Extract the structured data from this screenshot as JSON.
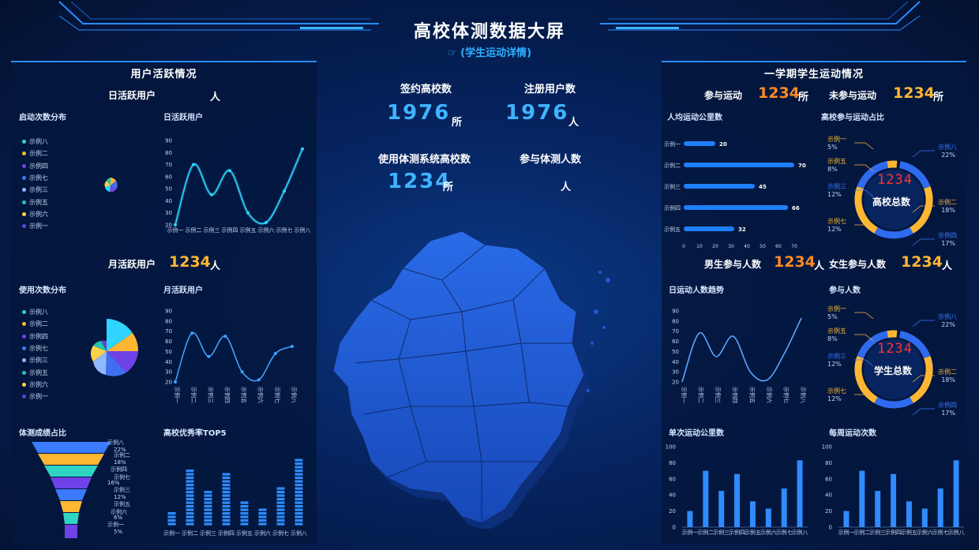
{
  "header": {
    "title": "高校体测数据大屏",
    "subtitle": "(学生运动详情)"
  },
  "colors": {
    "accent": "#2a8cff",
    "orange": "#ffb733",
    "blue": "#3fb4ff"
  },
  "left": {
    "title": "用户活跃情况",
    "daily": {
      "label": "日活跃用户",
      "unit": "人"
    },
    "launch_dist": {
      "title": "启动次数分布",
      "legend": [
        "示例八",
        "示例二",
        "示例四",
        "示例七",
        "示例三",
        "示例五",
        "示例六",
        "示例一"
      ]
    },
    "daily_chart": {
      "title": "日活跃用户"
    },
    "monthly": {
      "label": "月活跃用户",
      "value": "1234",
      "unit": "人"
    },
    "usage_dist": {
      "title": "使用次数分布",
      "legend": [
        "示例八",
        "示例二",
        "示例四",
        "示例七",
        "示例三",
        "示例五",
        "示例六",
        "示例一"
      ]
    },
    "monthly_chart": {
      "title": "月活跃用户"
    },
    "score": {
      "title": "体测成绩占比",
      "labels": [
        "示例八",
        "22%",
        "示例二",
        "18%",
        "示例四",
        "示例七",
        "16%",
        "示例三",
        "12%",
        "示例五",
        "示例六",
        "6%",
        "示例一",
        "5%"
      ]
    },
    "top5": {
      "title": "高校优秀率TOP5"
    }
  },
  "center": {
    "signed": {
      "label": "签约高校数",
      "value": "1976",
      "unit": "所"
    },
    "registered": {
      "label": "注册用户数",
      "value": "1976",
      "unit": "人"
    },
    "using": {
      "label": "使用体测系统高校数",
      "value": "1234",
      "unit": "所"
    },
    "participants": {
      "label": "参与体测人数",
      "unit": "人"
    }
  },
  "right": {
    "title": "一学期学生运动情况",
    "part": {
      "label": "参与运动",
      "value": "1234",
      "unit": "所"
    },
    "nopart": {
      "label": "未参与运动",
      "value": "1234",
      "unit": "所"
    },
    "km": {
      "title": "人均运动公里数"
    },
    "ratio": {
      "title": "高校参与运动占比",
      "center_num": "1234",
      "center_label": "高校总数"
    },
    "male": {
      "label": "男生参与人数",
      "value": "1234",
      "unit": "人"
    },
    "female": {
      "label": "女生参与人数",
      "value": "1234",
      "unit": "人"
    },
    "trend": {
      "title": "日运动人数趋势"
    },
    "people": {
      "title": "参与人数",
      "center_num": "1234",
      "center_label": "学生总数"
    },
    "single_km": {
      "title": "单次运动公里数"
    },
    "weekly": {
      "title": "每周运动次数"
    }
  },
  "chart_data": [
    {
      "type": "line",
      "name_ref": "left.daily_chart",
      "categories": [
        "示例一",
        "示例二",
        "示例三",
        "示例四",
        "示例五",
        "示例六",
        "示例七",
        "示例八"
      ],
      "values": [
        20,
        70,
        45,
        65,
        30,
        22,
        48,
        83
      ],
      "ylim": [
        20,
        90
      ],
      "yticks": [
        20,
        30,
        40,
        50,
        60,
        70,
        80,
        90
      ]
    },
    {
      "type": "line",
      "name_ref": "left.monthly_chart",
      "categories": [
        "示例一",
        "示例二",
        "示例三",
        "示例四",
        "示例五",
        "示例六",
        "示例七",
        "示例八"
      ],
      "values": [
        20,
        68,
        45,
        65,
        30,
        22,
        48,
        55
      ],
      "ylim": [
        20,
        90
      ],
      "yticks": [
        20,
        30,
        40,
        50,
        60,
        70,
        80,
        90
      ]
    },
    {
      "type": "bar",
      "name_ref": "left.top5",
      "categories": [
        "示例一",
        "示例二",
        "示例三",
        "示例四",
        "示例五",
        "示例六",
        "示例七",
        "示例八"
      ],
      "values": [
        20,
        70,
        45,
        65,
        30,
        22,
        48,
        83
      ]
    },
    {
      "type": "bar",
      "orientation": "horizontal",
      "name_ref": "right.km",
      "categories": [
        "示例一",
        "示例二",
        "示例三",
        "示例四",
        "示例五"
      ],
      "values": [
        20,
        70,
        45,
        66,
        32
      ],
      "xticks": [
        0,
        10,
        20,
        30,
        40,
        50,
        60,
        70
      ]
    },
    {
      "type": "pie",
      "name_ref": "right.ratio",
      "slices": [
        {
          "label": "示例一",
          "pct": "5%"
        },
        {
          "label": "示例五",
          "pct": "8%"
        },
        {
          "label": "示例三",
          "pct": "12%"
        },
        {
          "label": "示例七",
          "pct": "12%"
        },
        {
          "label": "示例八",
          "pct": "22%"
        },
        {
          "label": "示例二",
          "pct": "18%"
        },
        {
          "label": "示例四",
          "pct": "17%"
        }
      ]
    },
    {
      "type": "line",
      "name_ref": "right.trend",
      "categories": [
        "示例一",
        "示例二",
        "示例三",
        "示例四",
        "示例五",
        "示例六",
        "示例七",
        "示例八"
      ],
      "values": [
        20,
        68,
        45,
        65,
        30,
        22,
        48,
        83
      ],
      "ylim": [
        20,
        90
      ],
      "yticks": [
        20,
        30,
        40,
        50,
        60,
        70,
        80,
        90
      ]
    },
    {
      "type": "bar",
      "name_ref": "right.single_km",
      "categories": [
        "示例一",
        "示例二",
        "示例三",
        "示例四",
        "示例五",
        "示例六",
        "示例七",
        "示例八"
      ],
      "values": [
        20,
        70,
        45,
        66,
        32,
        23,
        48,
        83
      ],
      "ylim": [
        0,
        100
      ],
      "yticks": [
        0,
        20,
        40,
        60,
        80,
        100
      ]
    },
    {
      "type": "bar",
      "name_ref": "right.weekly",
      "categories": [
        "示例一",
        "示例二",
        "示例三",
        "示例四",
        "示例五",
        "示例六",
        "示例七",
        "示例八"
      ],
      "values": [
        20,
        70,
        45,
        66,
        32,
        23,
        48,
        83
      ],
      "ylim": [
        0,
        100
      ],
      "yticks": [
        0,
        20,
        40,
        60,
        80,
        100
      ]
    }
  ]
}
